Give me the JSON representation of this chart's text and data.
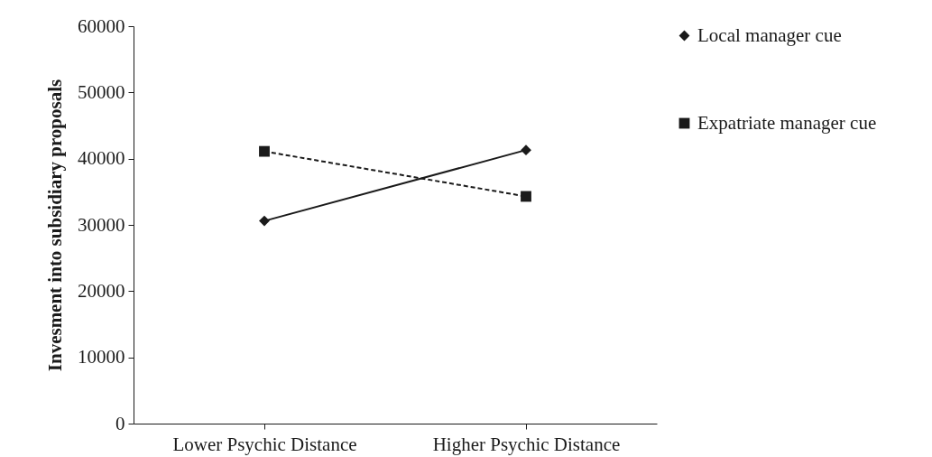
{
  "chart_data": {
    "type": "line",
    "ylabel": "Invesment into subsidiary proposals",
    "categories": [
      "Lower Psychic Distance",
      "Higher Psychic  Distance"
    ],
    "series": [
      {
        "name": "Local manager cue",
        "color": "#1a1a1a",
        "marker": "diamond",
        "line_style": "solid",
        "values": [
          30600,
          41300
        ]
      },
      {
        "name": "Expatriate manager cue",
        "color": "#1a1a1a",
        "marker": "square",
        "line_style": "dashed",
        "values": [
          41100,
          34300
        ]
      }
    ],
    "ylim": [
      0,
      60000
    ],
    "yticks": [
      0,
      10000,
      20000,
      30000,
      40000,
      50000,
      60000
    ],
    "grid": false,
    "legend": "right"
  }
}
